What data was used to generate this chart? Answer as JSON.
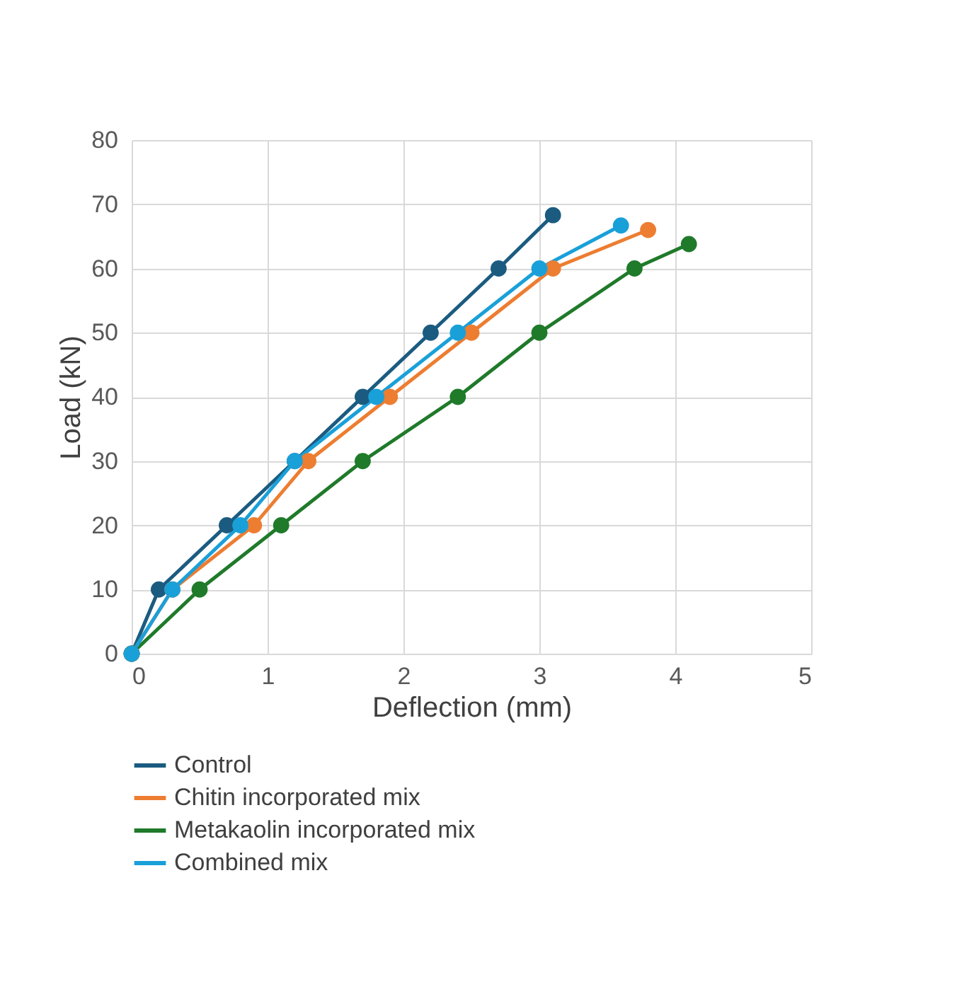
{
  "chart_data": {
    "type": "line",
    "xlabel": "Deflection (mm)",
    "ylabel": "Load (kN)",
    "xlim": [
      0,
      5
    ],
    "xticks": [
      0,
      1,
      2,
      3,
      4,
      5
    ],
    "ylim": [
      0,
      80
    ],
    "yticks": [
      0,
      10,
      20,
      30,
      40,
      50,
      60,
      70,
      80
    ],
    "grid": true,
    "legend": "bottom",
    "marker": "circle",
    "line_style": "solid",
    "series": [
      {
        "name": "Control",
        "color": "#1b5b80",
        "x": [
          0,
          0.2,
          0.7,
          1.2,
          1.7,
          2.2,
          2.7,
          3.1
        ],
        "values": [
          0,
          10,
          20,
          30,
          40,
          50,
          60,
          68.3
        ]
      },
      {
        "name": "Chitin incorporated mix",
        "color": "#ed7d31",
        "x": [
          0,
          0.3,
          0.9,
          1.3,
          1.9,
          2.5,
          3.1,
          3.8
        ],
        "values": [
          0,
          10,
          20,
          30,
          40,
          50,
          60,
          66
        ]
      },
      {
        "name": "Metakaolin incorporated mix",
        "color": "#1f7a2a",
        "x": [
          0,
          0.5,
          1.1,
          1.7,
          2.4,
          3.0,
          3.7,
          4.1
        ],
        "values": [
          0,
          10,
          20,
          30,
          40,
          50,
          60,
          63.8
        ]
      },
      {
        "name": "Combined mix",
        "color": "#1aa0d8",
        "x": [
          0,
          0.3,
          0.8,
          1.2,
          1.8,
          2.4,
          3.0,
          3.6
        ],
        "values": [
          0,
          10,
          20,
          30,
          40,
          50,
          60,
          66.7
        ]
      }
    ]
  }
}
